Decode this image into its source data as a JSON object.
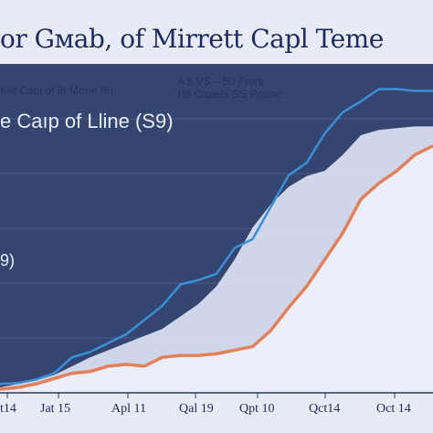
{
  "chart_data": {
    "type": "line",
    "title": "or Gмаb, of Mirrett Capl Teme",
    "annotation_left": "Ket Capl of Ih Mrme !8)",
    "annotation_right_1": "A 5 VS – 50 Frors",
    "annotation_right_2": "H8 Capets SS Poune",
    "ylabel": "e Caıp of Lline (S9)",
    "y_value_label": "9)",
    "x_ticks": [
      "t14",
      "Jat 15",
      "Apl 11",
      "Qal 19",
      "Qpt 10",
      "Qct14",
      "Oct 14"
    ],
    "x": [
      0,
      1,
      2,
      3,
      4,
      5,
      6,
      7,
      8,
      9,
      10,
      11,
      12,
      13,
      14,
      15,
      16,
      17,
      18,
      19,
      20,
      21,
      22,
      23,
      24
    ],
    "series": [
      {
        "name": "",
        "values": [
          10,
          11,
          15,
          22,
          40,
          46,
          56,
          66,
          82,
          98,
          122,
          127,
          134,
          163,
          173,
          209,
          245,
          259,
          292,
          316,
          328,
          342,
          342,
          340,
          340
        ]
      },
      {
        "name": "",
        "values": [
          4,
          6,
          10,
          16,
          22,
          24,
          30,
          32,
          30,
          40,
          42,
          42,
          44,
          48,
          52,
          70,
          96,
          120,
          150,
          180,
          218,
          236,
          250,
          268,
          278
        ]
      },
      {
        "name": "",
        "values": [
          6,
          10,
          14,
          20,
          30,
          40,
          48,
          56,
          64,
          72,
          86,
          100,
          120,
          150,
          186,
          212,
          232,
          244,
          250,
          268,
          290,
          296,
          298,
          300,
          300
        ]
      }
    ],
    "colors": {
      "background": "#34466f",
      "panel_light": "#d8def0",
      "line_blue": "#3a8fd8",
      "line_orange": "#e3805a",
      "area_light": "#eceff9"
    },
    "grid": true
  }
}
